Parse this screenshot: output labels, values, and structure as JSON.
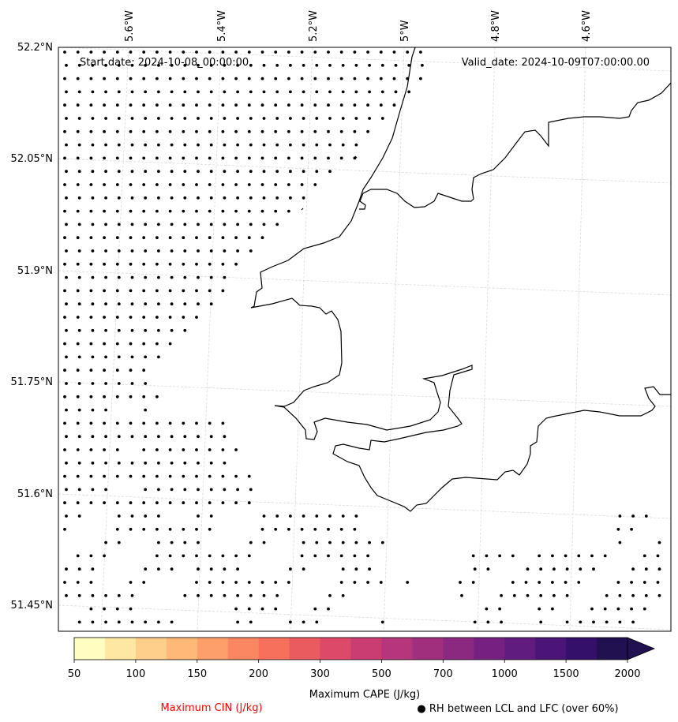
{
  "map": {
    "start_date": "Start date: 2024-10-08_00:00:00",
    "valid_date": "Valid_date: 2024-10-09T07:00:00.00",
    "lat_ticks": [
      {
        "label": "52.2°N",
        "lat": 52.2
      },
      {
        "label": "52.05°N",
        "lat": 52.05
      },
      {
        "label": "51.9°N",
        "lat": 51.9
      },
      {
        "label": "51.75°N",
        "lat": 51.75
      },
      {
        "label": "51.6°N",
        "lat": 51.6
      },
      {
        "label": "51.45°N",
        "lat": 51.45
      }
    ],
    "lon_ticks": [
      {
        "label": "5.6°W",
        "lon": -5.6
      },
      {
        "label": "5.4°W",
        "lon": -5.4
      },
      {
        "label": "5.2°W",
        "lon": -5.2
      },
      {
        "label": "5°W",
        "lon": -5.0
      },
      {
        "label": "4.8°W",
        "lon": -4.8
      },
      {
        "label": "4.6°W",
        "lon": -4.6
      }
    ],
    "extent": {
      "lon_min": -5.78,
      "lon_max": -4.45,
      "lat_min": 51.42,
      "lat_max": 52.2
    },
    "grid_color": "#d9d9d9",
    "coast_color": "#000000"
  },
  "colorbar": {
    "ticks": [
      "50",
      "100",
      "150",
      "200",
      "300",
      "500",
      "700",
      "1000",
      "1500",
      "2000"
    ],
    "colors": [
      "#fffdbf",
      "#fee6a3",
      "#fecf8a",
      "#feb878",
      "#fd9f6b",
      "#fb8762",
      "#f6705c",
      "#ea5b60",
      "#dd4968",
      "#ca3d72",
      "#b5367a",
      "#a0307e",
      "#8b2981",
      "#762181",
      "#611c7f",
      "#4b1578",
      "#35106a",
      "#221150"
    ],
    "extend_color": "#221150",
    "cape_label": "Maximum CAPE (J/kg)",
    "cin_label": "Maximum CIN (J/kg)",
    "cin_color": "#ff0000",
    "rh_label": "● RH between LCL and LFC (over 60%)"
  }
}
